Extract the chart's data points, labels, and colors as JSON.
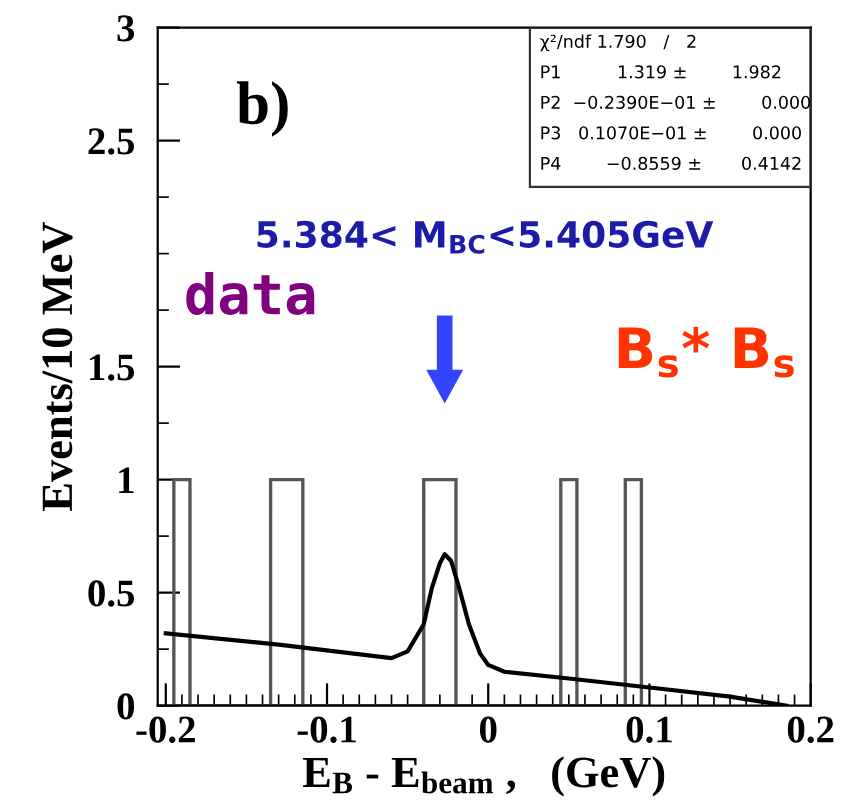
{
  "chart_data": {
    "type": "histogram",
    "xlabel": "E$_{B}$ - E$_{beam}$ ,   (GeV)",
    "ylabel": "Events/10 MeV",
    "xlim": [
      -0.205,
      0.2
    ],
    "xticks": [
      -0.2,
      -0.1,
      0,
      0.1,
      0.2
    ],
    "ylim": [
      0,
      3
    ],
    "yticks": [
      0,
      0.5,
      1,
      1.5,
      2.5,
      3
    ],
    "grid": false,
    "series": [
      {
        "color": "#555555",
        "bins": [
          -0.195,
          -0.185,
          -0.135,
          -0.115,
          -0.04,
          -0.02,
          0.045,
          0.055,
          0.085,
          0.095
        ],
        "values": [
          1,
          0,
          1,
          0,
          1,
          0,
          1,
          0,
          1
        ]
      },
      {
        "type": "line",
        "color": "#000000",
        "x": [
          -0.2,
          -0.13,
          -0.06,
          -0.05,
          -0.04,
          -0.035,
          -0.03,
          -0.027,
          -0.023,
          -0.018,
          -0.012,
          -0.005,
          0.0,
          0.01,
          0.05,
          0.1,
          0.15,
          0.185
        ],
        "values": [
          0.32,
          0.27,
          0.21,
          0.24,
          0.36,
          0.52,
          0.63,
          0.67,
          0.64,
          0.52,
          0.36,
          0.23,
          0.18,
          0.15,
          0.12,
          0.08,
          0.04,
          0.0
        ]
      }
    ],
    "annotations": [
      "b)",
      "χ²/ndf 1.790   /   2",
      "P1          1.319 ±        1.982",
      "P2  −0.2390E−01 ±        0.000",
      "P3   0.1070E−01 ±        0.000",
      "P4        −0.8559 ±       0.4142",
      "5.384< M$_{BC}$<5.405GeV",
      "data",
      "B$_{s}$* B$_{s}$"
    ]
  }
}
